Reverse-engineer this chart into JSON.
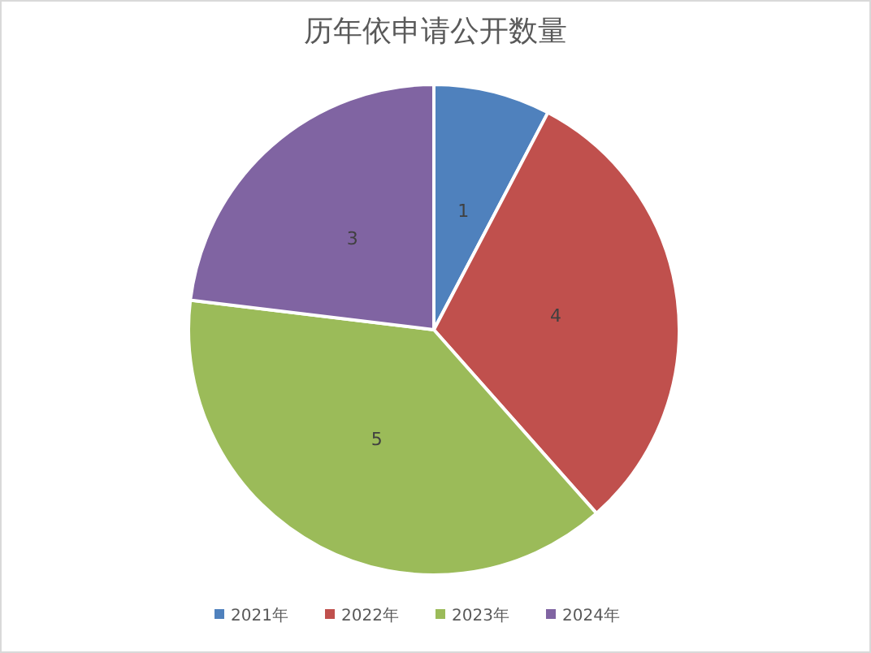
{
  "chart_data": {
    "type": "pie",
    "title": "历年依申请公开数量",
    "categories": [
      "2021年",
      "2022年",
      "2023年",
      "2024年"
    ],
    "values": [
      1,
      4,
      5,
      3
    ],
    "colors": [
      "#4f81bd",
      "#c0504d",
      "#9bbb59",
      "#8064a2"
    ],
    "data_labels": true,
    "legend": "bottom"
  }
}
